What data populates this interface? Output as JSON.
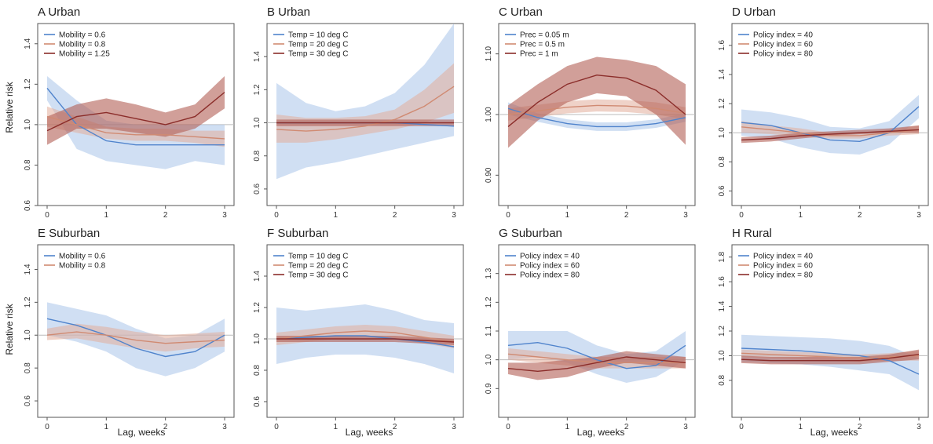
{
  "figure": {
    "x_label": "Lag, weeks",
    "y_label": "Relative risk"
  },
  "colors": {
    "series1": "#4f83cc",
    "series2": "#d08a72",
    "series3": "#8b2d2a",
    "band1": "#a9c5ea",
    "band2": "#e2ad9a",
    "band3": "#b35f55",
    "reference": "#bbbbbb"
  },
  "chart_data": [
    {
      "type": "line",
      "title": "A Urban",
      "ylabel": "Relative risk",
      "ylim": [
        0.6,
        1.5
      ],
      "yticks": [
        0.6,
        0.8,
        1.0,
        1.2,
        1.4
      ],
      "ytick_labels": [
        "0.6",
        "0.8",
        "1.0",
        "1.2",
        "1.4"
      ],
      "xlim": [
        0,
        3
      ],
      "xticks": [
        0,
        1,
        2,
        3
      ],
      "reference_y": 1.0,
      "series": [
        {
          "name": "Mobility = 0.6",
          "x": [
            0,
            0.5,
            1,
            1.5,
            2,
            2.5,
            3
          ],
          "values": [
            1.18,
            1.0,
            0.92,
            0.9,
            0.9,
            0.9,
            0.9
          ],
          "lower": [
            1.12,
            0.88,
            0.82,
            0.8,
            0.78,
            0.82,
            0.8
          ],
          "upper": [
            1.24,
            1.12,
            1.02,
            1.0,
            1.0,
            1.0,
            1.0
          ]
        },
        {
          "name": "Mobility = 0.8",
          "x": [
            0,
            0.5,
            1,
            1.5,
            2,
            2.5,
            3
          ],
          "values": [
            1.04,
            1.0,
            0.96,
            0.95,
            0.95,
            0.94,
            0.93
          ],
          "lower": [
            0.99,
            0.96,
            0.93,
            0.92,
            0.92,
            0.91,
            0.89
          ],
          "upper": [
            1.09,
            1.04,
            0.99,
            0.98,
            0.98,
            0.97,
            0.97
          ]
        },
        {
          "name": "Mobility = 1.25",
          "x": [
            0,
            0.5,
            1,
            1.5,
            2,
            2.5,
            3
          ],
          "values": [
            0.97,
            1.04,
            1.06,
            1.03,
            1.0,
            1.04,
            1.16
          ],
          "lower": [
            0.9,
            0.98,
            0.98,
            0.96,
            0.94,
            0.98,
            1.08
          ],
          "upper": [
            1.04,
            1.1,
            1.13,
            1.1,
            1.06,
            1.1,
            1.24
          ]
        }
      ]
    },
    {
      "type": "line",
      "title": "B Urban",
      "ylabel": "",
      "ylim": [
        0.5,
        1.6
      ],
      "yticks": [
        0.6,
        0.8,
        1.0,
        1.2,
        1.4
      ],
      "ytick_labels": [
        "0.6",
        "0.8",
        "1.0",
        "1.2",
        "1.4"
      ],
      "xlim": [
        0,
        3
      ],
      "xticks": [
        0,
        1,
        2,
        3
      ],
      "reference_y": 1.0,
      "series": [
        {
          "name": "Temp = 10 deg C",
          "x": [
            0,
            0.5,
            1,
            1.5,
            2,
            2.5,
            3
          ],
          "values": [
            1.0,
            1.0,
            1.0,
            1.0,
            1.0,
            0.99,
            0.98
          ],
          "lower": [
            0.66,
            0.73,
            0.76,
            0.8,
            0.84,
            0.88,
            0.92
          ],
          "upper": [
            1.24,
            1.12,
            1.07,
            1.1,
            1.18,
            1.35,
            1.6
          ]
        },
        {
          "name": "Temp = 20 deg C",
          "x": [
            0,
            0.5,
            1,
            1.5,
            2,
            2.5,
            3
          ],
          "values": [
            0.96,
            0.95,
            0.96,
            0.98,
            1.02,
            1.1,
            1.22
          ],
          "lower": [
            0.88,
            0.88,
            0.9,
            0.93,
            0.96,
            1.0,
            1.06
          ],
          "upper": [
            1.05,
            1.03,
            1.03,
            1.04,
            1.08,
            1.2,
            1.36
          ]
        },
        {
          "name": "Temp = 30 deg C",
          "x": [
            0,
            0.5,
            1,
            1.5,
            2,
            2.5,
            3
          ],
          "values": [
            1.0,
            1.0,
            1.0,
            1.0,
            1.0,
            1.0,
            1.0
          ],
          "lower": [
            0.98,
            0.98,
            0.98,
            0.98,
            0.98,
            0.98,
            0.98
          ],
          "upper": [
            1.02,
            1.02,
            1.02,
            1.02,
            1.02,
            1.02,
            1.02
          ]
        }
      ]
    },
    {
      "type": "line",
      "title": "C Urban",
      "ylabel": "",
      "ylim": [
        0.85,
        1.15
      ],
      "yticks": [
        0.9,
        1.0,
        1.1
      ],
      "ytick_labels": [
        "0.90",
        "1.00",
        "1.10"
      ],
      "xlim": [
        0,
        3
      ],
      "xticks": [
        0,
        1,
        2,
        3
      ],
      "reference_y": 1.0,
      "series": [
        {
          "name": "Prec = 0.05 m",
          "x": [
            0,
            0.5,
            1,
            1.5,
            2,
            2.5,
            3
          ],
          "values": [
            1.01,
            0.995,
            0.985,
            0.98,
            0.98,
            0.985,
            0.995
          ],
          "lower": [
            1.0,
            0.988,
            0.978,
            0.973,
            0.973,
            0.978,
            0.988
          ],
          "upper": [
            1.02,
            1.002,
            0.992,
            0.987,
            0.987,
            0.992,
            1.002
          ]
        },
        {
          "name": "Prec = 0.5 m",
          "x": [
            0,
            0.5,
            1,
            1.5,
            2,
            2.5,
            3
          ],
          "values": [
            1.0,
            1.006,
            1.012,
            1.015,
            1.014,
            1.01,
            1.002
          ],
          "lower": [
            0.99,
            0.996,
            1.002,
            1.005,
            1.004,
            1.0,
            0.992
          ],
          "upper": [
            1.01,
            1.016,
            1.022,
            1.025,
            1.024,
            1.02,
            1.012
          ]
        },
        {
          "name": "Prec = 1 m",
          "x": [
            0,
            0.5,
            1,
            1.5,
            2,
            2.5,
            3
          ],
          "values": [
            0.98,
            1.02,
            1.05,
            1.065,
            1.06,
            1.04,
            1.0
          ],
          "lower": [
            0.945,
            0.99,
            1.02,
            1.035,
            1.03,
            1.0,
            0.95
          ],
          "upper": [
            1.015,
            1.05,
            1.08,
            1.095,
            1.09,
            1.08,
            1.05
          ]
        }
      ]
    },
    {
      "type": "line",
      "title": "D Urban",
      "ylabel": "",
      "ylim": [
        0.5,
        1.75
      ],
      "yticks": [
        0.6,
        0.8,
        1.0,
        1.2,
        1.4,
        1.6
      ],
      "ytick_labels": [
        "0.6",
        "0.8",
        "1.0",
        "1.2",
        "1.4",
        "1.6"
      ],
      "xlim": [
        0,
        3
      ],
      "xticks": [
        0,
        1,
        2,
        3
      ],
      "reference_y": 1.0,
      "series": [
        {
          "name": "Policy index = 40",
          "x": [
            0,
            0.5,
            1,
            1.5,
            2,
            2.5,
            3
          ],
          "values": [
            1.07,
            1.05,
            1.0,
            0.95,
            0.94,
            1.0,
            1.18
          ],
          "lower": [
            0.98,
            0.96,
            0.9,
            0.86,
            0.85,
            0.92,
            1.1
          ],
          "upper": [
            1.16,
            1.14,
            1.1,
            1.04,
            1.03,
            1.08,
            1.26
          ]
        },
        {
          "name": "Policy index = 60",
          "x": [
            0,
            0.5,
            1,
            1.5,
            2,
            2.5,
            3
          ],
          "values": [
            1.04,
            1.02,
            1.0,
            0.98,
            0.98,
            1.0,
            1.02
          ],
          "lower": [
            1.0,
            0.99,
            0.97,
            0.96,
            0.96,
            0.98,
            0.99
          ],
          "upper": [
            1.08,
            1.05,
            1.03,
            1.0,
            1.0,
            1.02,
            1.05
          ]
        },
        {
          "name": "Policy index = 80",
          "x": [
            0,
            0.5,
            1,
            1.5,
            2,
            2.5,
            3
          ],
          "values": [
            0.95,
            0.96,
            0.98,
            0.99,
            1.0,
            1.01,
            1.02
          ],
          "lower": [
            0.93,
            0.94,
            0.96,
            0.98,
            0.99,
            1.0,
            1.0
          ],
          "upper": [
            0.97,
            0.98,
            1.0,
            1.01,
            1.02,
            1.03,
            1.05
          ]
        }
      ]
    },
    {
      "type": "line",
      "title": "E Suburban",
      "ylabel": "Relative risk",
      "ylim": [
        0.5,
        1.55
      ],
      "yticks": [
        0.6,
        0.8,
        1.0,
        1.2,
        1.4
      ],
      "ytick_labels": [
        "0.6",
        "0.8",
        "1.0",
        "1.2",
        "1.4"
      ],
      "xlim": [
        0,
        3
      ],
      "xticks": [
        0,
        1,
        2,
        3
      ],
      "reference_y": 1.0,
      "series": [
        {
          "name": "Mobility = 0.6",
          "x": [
            0,
            0.5,
            1,
            1.5,
            2,
            2.5,
            3
          ],
          "values": [
            1.1,
            1.06,
            1.0,
            0.92,
            0.87,
            0.9,
            1.0
          ],
          "lower": [
            1.0,
            0.96,
            0.9,
            0.8,
            0.75,
            0.8,
            0.9
          ],
          "upper": [
            1.2,
            1.16,
            1.12,
            1.04,
            0.98,
            1.0,
            1.1
          ]
        },
        {
          "name": "Mobility = 0.8",
          "x": [
            0,
            0.5,
            1,
            1.5,
            2,
            2.5,
            3
          ],
          "values": [
            1.0,
            1.02,
            1.0,
            0.97,
            0.95,
            0.96,
            0.97
          ],
          "lower": [
            0.97,
            0.98,
            0.95,
            0.92,
            0.9,
            0.92,
            0.93
          ],
          "upper": [
            1.04,
            1.07,
            1.05,
            1.02,
            1.0,
            1.01,
            1.02
          ]
        }
      ]
    },
    {
      "type": "line",
      "title": "F Suburban",
      "ylabel": "",
      "ylim": [
        0.5,
        1.6
      ],
      "yticks": [
        0.6,
        0.8,
        1.0,
        1.2,
        1.4
      ],
      "ytick_labels": [
        "0.6",
        "0.8",
        "1.0",
        "1.2",
        "1.4"
      ],
      "xlim": [
        0,
        3
      ],
      "xticks": [
        0,
        1,
        2,
        3
      ],
      "reference_y": 1.0,
      "series": [
        {
          "name": "Temp = 10 deg C",
          "x": [
            0,
            0.5,
            1,
            1.5,
            2,
            2.5,
            3
          ],
          "values": [
            1.0,
            1.01,
            1.02,
            1.02,
            1.0,
            0.98,
            0.95
          ],
          "lower": [
            0.84,
            0.88,
            0.9,
            0.9,
            0.88,
            0.84,
            0.78
          ],
          "upper": [
            1.2,
            1.18,
            1.2,
            1.22,
            1.18,
            1.12,
            1.1
          ]
        },
        {
          "name": "Temp = 20 deg C",
          "x": [
            0,
            0.5,
            1,
            1.5,
            2,
            2.5,
            3
          ],
          "values": [
            1.0,
            1.02,
            1.04,
            1.05,
            1.04,
            1.01,
            0.98
          ],
          "lower": [
            0.96,
            0.98,
            1.0,
            1.01,
            1.0,
            0.97,
            0.94
          ],
          "upper": [
            1.04,
            1.06,
            1.08,
            1.09,
            1.08,
            1.05,
            1.02
          ]
        },
        {
          "name": "Temp = 30 deg C",
          "x": [
            0,
            0.5,
            1,
            1.5,
            2,
            2.5,
            3
          ],
          "values": [
            1.0,
            1.0,
            1.0,
            1.0,
            1.0,
            0.99,
            0.98
          ],
          "lower": [
            0.98,
            0.98,
            0.98,
            0.98,
            0.98,
            0.97,
            0.96
          ],
          "upper": [
            1.02,
            1.02,
            1.02,
            1.02,
            1.02,
            1.01,
            1.0
          ]
        }
      ]
    },
    {
      "type": "line",
      "title": "G Suburban",
      "ylabel": "",
      "ylim": [
        0.8,
        1.4
      ],
      "yticks": [
        0.9,
        1.0,
        1.1,
        1.2,
        1.3
      ],
      "ytick_labels": [
        "0.9",
        "1.0",
        "1.1",
        "1.2",
        "1.3"
      ],
      "xlim": [
        0,
        3
      ],
      "xticks": [
        0,
        1,
        2,
        3
      ],
      "reference_y": 1.0,
      "series": [
        {
          "name": "Policy index = 40",
          "x": [
            0,
            0.5,
            1,
            1.5,
            2,
            2.5,
            3
          ],
          "values": [
            1.05,
            1.06,
            1.04,
            1.0,
            0.97,
            0.98,
            1.05
          ],
          "lower": [
            1.0,
            1.01,
            0.99,
            0.95,
            0.92,
            0.94,
            1.0
          ],
          "upper": [
            1.1,
            1.1,
            1.1,
            1.05,
            1.02,
            1.03,
            1.1
          ]
        },
        {
          "name": "Policy index = 60",
          "x": [
            0,
            0.5,
            1,
            1.5,
            2,
            2.5,
            3
          ],
          "values": [
            1.02,
            1.01,
            1.0,
            0.99,
            0.99,
            0.99,
            0.99
          ],
          "lower": [
            1.0,
            0.99,
            0.98,
            0.97,
            0.97,
            0.97,
            0.97
          ],
          "upper": [
            1.04,
            1.03,
            1.02,
            1.01,
            1.01,
            1.01,
            1.01
          ]
        },
        {
          "name": "Policy index = 80",
          "x": [
            0,
            0.5,
            1,
            1.5,
            2,
            2.5,
            3
          ],
          "values": [
            0.97,
            0.96,
            0.97,
            0.99,
            1.01,
            1.0,
            0.99
          ],
          "lower": [
            0.95,
            0.93,
            0.94,
            0.97,
            0.99,
            0.98,
            0.97
          ],
          "upper": [
            0.99,
            0.99,
            1.0,
            1.01,
            1.03,
            1.02,
            1.01
          ]
        }
      ]
    },
    {
      "type": "line",
      "title": "H Rural",
      "ylabel": "",
      "ylim": [
        0.5,
        1.9
      ],
      "yticks": [
        0.8,
        1.0,
        1.2,
        1.4,
        1.6,
        1.8
      ],
      "ytick_labels": [
        "0.8",
        "1.0",
        "1.2",
        "1.4",
        "1.6",
        "1.8"
      ],
      "xlim": [
        0,
        3
      ],
      "xticks": [
        0,
        1,
        2,
        3
      ],
      "reference_y": 1.0,
      "series": [
        {
          "name": "Policy index = 40",
          "x": [
            0,
            0.5,
            1,
            1.5,
            2,
            2.5,
            3
          ],
          "values": [
            1.06,
            1.05,
            1.04,
            1.02,
            1.0,
            0.96,
            0.85
          ],
          "lower": [
            0.95,
            0.94,
            0.93,
            0.91,
            0.88,
            0.85,
            0.72
          ],
          "upper": [
            1.17,
            1.16,
            1.15,
            1.14,
            1.12,
            1.08,
            0.98
          ]
        },
        {
          "name": "Policy index = 60",
          "x": [
            0,
            0.5,
            1,
            1.5,
            2,
            2.5,
            3
          ],
          "values": [
            1.02,
            1.01,
            1.0,
            0.99,
            0.98,
            0.99,
            1.0
          ],
          "lower": [
            0.99,
            0.98,
            0.97,
            0.96,
            0.95,
            0.96,
            0.96
          ],
          "upper": [
            1.05,
            1.04,
            1.03,
            1.02,
            1.01,
            1.02,
            1.04
          ]
        },
        {
          "name": "Policy index = 80",
          "x": [
            0,
            0.5,
            1,
            1.5,
            2,
            2.5,
            3
          ],
          "values": [
            0.97,
            0.96,
            0.96,
            0.96,
            0.96,
            0.98,
            1.01
          ],
          "lower": [
            0.94,
            0.93,
            0.93,
            0.93,
            0.93,
            0.95,
            0.97
          ],
          "upper": [
            1.0,
            0.99,
            0.99,
            0.99,
            0.99,
            1.01,
            1.05
          ]
        }
      ]
    }
  ]
}
